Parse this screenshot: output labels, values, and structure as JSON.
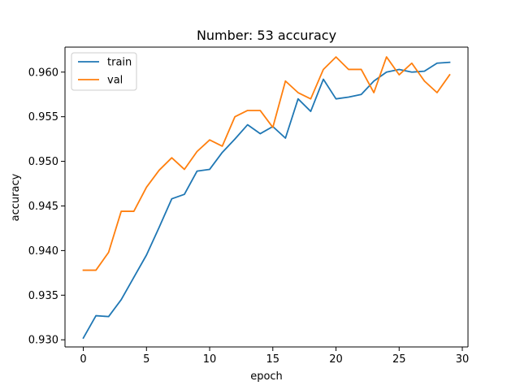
{
  "chart_data": {
    "type": "line",
    "title": "Number: 53 accuracy",
    "xlabel": "epoch",
    "ylabel": "accuracy",
    "xlim": [
      -1.45,
      30.45
    ],
    "ylim": [
      0.9292,
      0.9628
    ],
    "xticks": [
      0,
      5,
      10,
      15,
      20,
      25,
      30
    ],
    "yticks": [
      0.93,
      0.935,
      0.94,
      0.945,
      0.95,
      0.955,
      0.96
    ],
    "ytick_labels": [
      "0.930",
      "0.935",
      "0.940",
      "0.945",
      "0.950",
      "0.955",
      "0.960"
    ],
    "grid": false,
    "legend_position": "top-left",
    "x": [
      0,
      1,
      2,
      3,
      4,
      5,
      6,
      7,
      8,
      9,
      10,
      11,
      12,
      13,
      14,
      15,
      16,
      17,
      18,
      19,
      20,
      21,
      22,
      23,
      24,
      25,
      26,
      27,
      28,
      29
    ],
    "series": [
      {
        "name": "train",
        "color": "#1f77b4",
        "values": [
          0.9302,
          0.9327,
          0.9326,
          0.9345,
          0.937,
          0.9395,
          0.9426,
          0.9458,
          0.9463,
          0.9489,
          0.9491,
          0.951,
          0.9525,
          0.9541,
          0.9531,
          0.9539,
          0.9526,
          0.957,
          0.9556,
          0.9592,
          0.957,
          0.9572,
          0.9575,
          0.959,
          0.96,
          0.9603,
          0.96,
          0.9601,
          0.961,
          0.9611
        ]
      },
      {
        "name": "val",
        "color": "#ff7f0e",
        "values": [
          0.9378,
          0.9378,
          0.9398,
          0.9444,
          0.9444,
          0.9471,
          0.949,
          0.9504,
          0.9491,
          0.9511,
          0.9524,
          0.9517,
          0.955,
          0.9557,
          0.9557,
          0.9538,
          0.959,
          0.9577,
          0.957,
          0.9603,
          0.9617,
          0.9603,
          0.9603,
          0.9577,
          0.9617,
          0.9597,
          0.961,
          0.959,
          0.9577,
          0.9597
        ]
      }
    ]
  }
}
